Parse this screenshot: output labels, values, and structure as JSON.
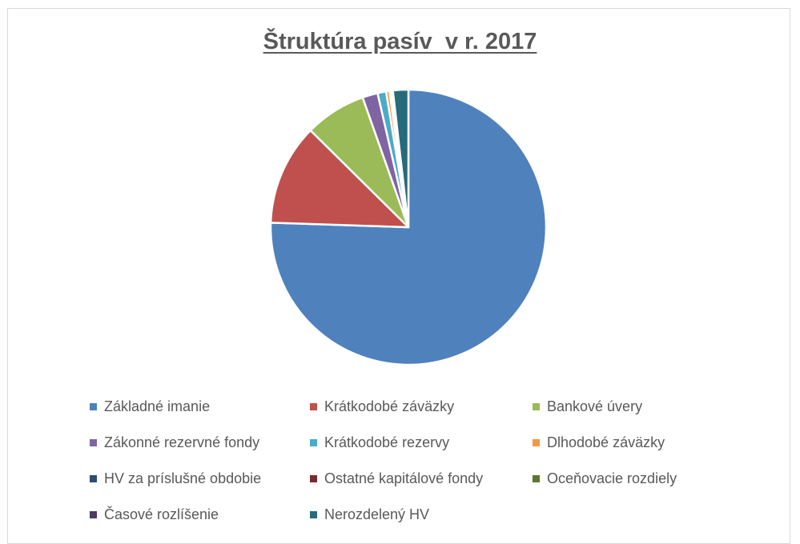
{
  "chart_data": {
    "type": "pie",
    "title": "Štruktúra pasív  v r. 2017",
    "legend_position": "bottom",
    "categories": [
      "Základné imanie",
      "Krátkodobé záväzky",
      "Bankové úvery",
      "Zákonné rezervné fondy",
      "Krátkodobé rezervy",
      "Dlhodobé záväzky",
      "HV za príslušné obdobie",
      "Ostatné kapitálové fondy",
      "Oceňovacie rozdiely",
      "Časové rozlíšenie",
      "Nerozdelený HV"
    ],
    "values": [
      75.6,
      11.9,
      7.2,
      1.8,
      1.0,
      0.4,
      0.1,
      0.1,
      0.1,
      0.1,
      1.8
    ],
    "colors": [
      "#4f81bd",
      "#c0504d",
      "#9bbb59",
      "#8064a2",
      "#4bacc6",
      "#f79646",
      "#2c4d75",
      "#772c2a",
      "#5f7530",
      "#4d3b62",
      "#276a7c"
    ]
  }
}
